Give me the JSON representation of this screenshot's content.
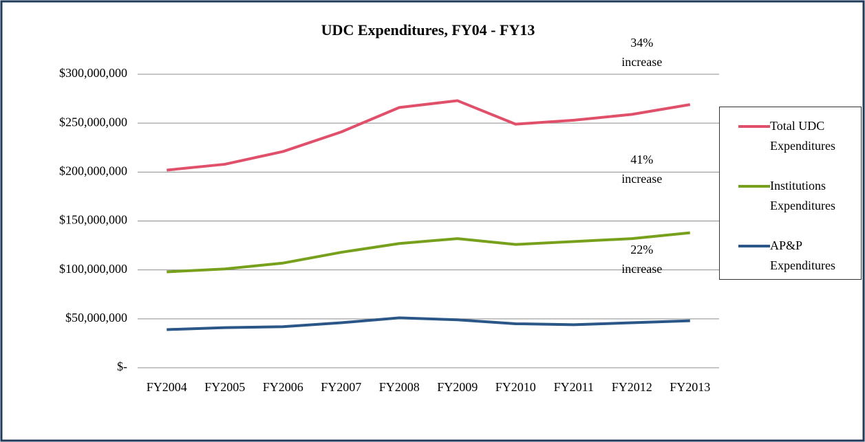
{
  "chart_data": {
    "type": "line",
    "title": "UDC Expenditures, FY04 - FY13",
    "categories": [
      "FY2004",
      "FY2005",
      "FY2006",
      "FY2007",
      "FY2008",
      "FY2009",
      "FY2010",
      "FY2011",
      "FY2012",
      "FY2013"
    ],
    "series": [
      {
        "name": "Total UDC Expenditures",
        "color": "#e0506a",
        "values": [
          202000000,
          208000000,
          221000000,
          241000000,
          266000000,
          273000000,
          249000000,
          253000000,
          259000000,
          269000000
        ]
      },
      {
        "name": "Institutions Expenditures",
        "color": "#77a01c",
        "values": [
          98000000,
          101000000,
          107000000,
          118000000,
          127000000,
          132000000,
          126000000,
          129000000,
          132000000,
          138000000
        ]
      },
      {
        "name": "AP&P Expenditures",
        "color": "#2a5787",
        "values": [
          39000000,
          41000000,
          42000000,
          46000000,
          51000000,
          49000000,
          45000000,
          44000000,
          46000000,
          48000000
        ]
      }
    ],
    "annotations": [
      "34% increase",
      "41% increase",
      "22% increase"
    ],
    "ylim": [
      0,
      300000000
    ],
    "yticks": [
      {
        "value": 0,
        "label": "$-"
      },
      {
        "value": 50000000,
        "label": "$50,000,000"
      },
      {
        "value": 100000000,
        "label": "$100,000,000"
      },
      {
        "value": 150000000,
        "label": "$150,000,000"
      },
      {
        "value": 200000000,
        "label": "$200,000,000"
      },
      {
        "value": 250000000,
        "label": "$250,000,000"
      },
      {
        "value": 300000000,
        "label": "$300,000,000"
      }
    ],
    "grid": true,
    "legend": "right"
  }
}
